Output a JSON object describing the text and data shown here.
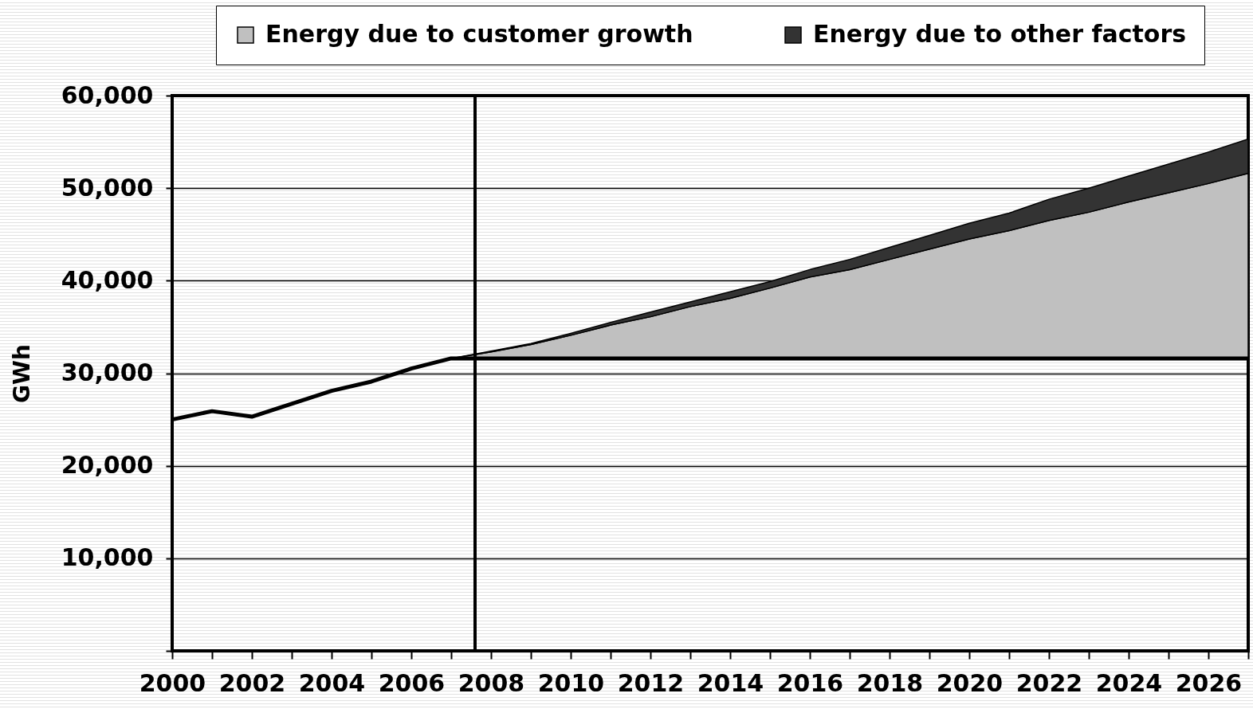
{
  "chart_data": {
    "type": "area",
    "ylabel": "GWh",
    "x": [
      2007,
      2008,
      2009,
      2010,
      2011,
      2012,
      2013,
      2014,
      2015,
      2016,
      2017,
      2018,
      2019,
      2020,
      2021,
      2022,
      2023,
      2024,
      2025,
      2026,
      2027
    ],
    "series": [
      {
        "name": "Energy due to customer growth",
        "color": "#c0c0c0",
        "values": [
          31600,
          32300,
          33100,
          34100,
          35200,
          36100,
          37200,
          38100,
          39200,
          40400,
          41200,
          42300,
          43400,
          44500,
          45400,
          46500,
          47400,
          48500,
          49500,
          50500,
          51600
        ]
      },
      {
        "name": "Energy due to other factors",
        "color": "#333333",
        "values": [
          31600,
          32400,
          33200,
          34300,
          35500,
          36600,
          37700,
          38800,
          39900,
          41200,
          42300,
          43600,
          44900,
          46200,
          47300,
          48800,
          50000,
          51300,
          52600,
          53900,
          55300
        ]
      },
      {
        "type": "line",
        "color": "#000000",
        "x": [
          2000,
          2001,
          2002,
          2003,
          2004,
          2005,
          2006,
          2007,
          2027
        ],
        "values": [
          25000,
          25900,
          25300,
          26700,
          28100,
          29100,
          30500,
          31600,
          31600
        ]
      }
    ],
    "xlim": [
      2000,
      2027
    ],
    "xticks": [
      2000,
      {
        "value": 2001,
        "label": null
      },
      2002,
      {
        "value": 2003,
        "label": null
      },
      2004,
      {
        "value": 2005,
        "label": null
      },
      2006,
      {
        "value": 2007,
        "label": null
      },
      2008,
      {
        "value": 2009,
        "label": null
      },
      2010,
      {
        "value": 2011,
        "label": null
      },
      2012,
      {
        "value": 2013,
        "label": null
      },
      2014,
      {
        "value": 2015,
        "label": null
      },
      2016,
      {
        "value": 2017,
        "label": null
      },
      2018,
      {
        "value": 2019,
        "label": null
      },
      2020,
      {
        "value": 2021,
        "label": null
      },
      2022,
      {
        "value": 2023,
        "label": null
      },
      2024,
      {
        "value": 2025,
        "label": null
      },
      2026,
      {
        "value": 2027,
        "label": null
      }
    ],
    "ylim": [
      0,
      60000
    ],
    "yticks": [
      {
        "value": 0,
        "label": null
      },
      {
        "value": 10000,
        "label": "10,000"
      },
      {
        "value": 20000,
        "label": "20,000"
      },
      {
        "value": 30000,
        "label": "30,000"
      },
      {
        "value": 40000,
        "label": "40,000"
      },
      {
        "value": 50000,
        "label": "50,000"
      },
      {
        "value": 60000,
        "label": "60,000"
      }
    ],
    "grid": "y",
    "legend": "top",
    "ref_lines": [
      {
        "axis": "x",
        "value": 2007.6
      }
    ]
  }
}
